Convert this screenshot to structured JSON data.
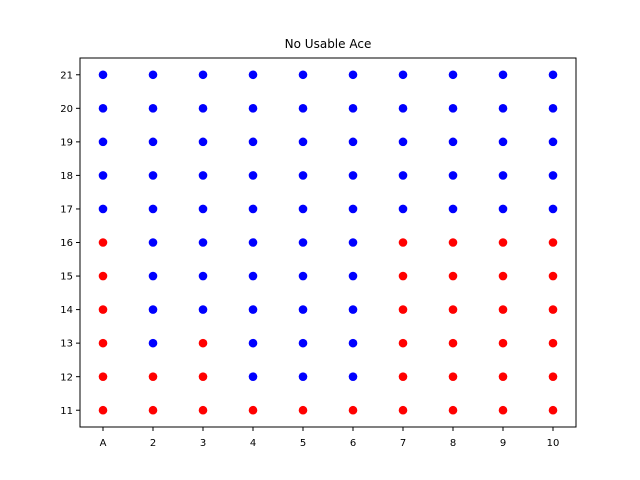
{
  "chart_data": {
    "type": "scatter",
    "title": "No Usable Ace",
    "xlabel": "",
    "ylabel": "",
    "x_categories": [
      "A",
      "2",
      "3",
      "4",
      "5",
      "6",
      "7",
      "8",
      "9",
      "10"
    ],
    "y_ticks": [
      11,
      12,
      13,
      14,
      15,
      16,
      17,
      18,
      19,
      20,
      21
    ],
    "ylim": [
      10.5,
      21.5
    ],
    "grid": false,
    "colors": {
      "blue": "#0000ff",
      "red": "#ff0000"
    },
    "points": [
      {
        "y": 21,
        "colors": [
          "blue",
          "blue",
          "blue",
          "blue",
          "blue",
          "blue",
          "blue",
          "blue",
          "blue",
          "blue"
        ]
      },
      {
        "y": 20,
        "colors": [
          "blue",
          "blue",
          "blue",
          "blue",
          "blue",
          "blue",
          "blue",
          "blue",
          "blue",
          "blue"
        ]
      },
      {
        "y": 19,
        "colors": [
          "blue",
          "blue",
          "blue",
          "blue",
          "blue",
          "blue",
          "blue",
          "blue",
          "blue",
          "blue"
        ]
      },
      {
        "y": 18,
        "colors": [
          "blue",
          "blue",
          "blue",
          "blue",
          "blue",
          "blue",
          "blue",
          "blue",
          "blue",
          "blue"
        ]
      },
      {
        "y": 17,
        "colors": [
          "blue",
          "blue",
          "blue",
          "blue",
          "blue",
          "blue",
          "blue",
          "blue",
          "blue",
          "blue"
        ]
      },
      {
        "y": 16,
        "colors": [
          "red",
          "blue",
          "blue",
          "blue",
          "blue",
          "blue",
          "red",
          "red",
          "red",
          "red"
        ]
      },
      {
        "y": 15,
        "colors": [
          "red",
          "blue",
          "blue",
          "blue",
          "blue",
          "blue",
          "red",
          "red",
          "red",
          "red"
        ]
      },
      {
        "y": 14,
        "colors": [
          "red",
          "blue",
          "blue",
          "blue",
          "blue",
          "blue",
          "red",
          "red",
          "red",
          "red"
        ]
      },
      {
        "y": 13,
        "colors": [
          "red",
          "blue",
          "red",
          "blue",
          "blue",
          "blue",
          "red",
          "red",
          "red",
          "red"
        ]
      },
      {
        "y": 12,
        "colors": [
          "red",
          "red",
          "red",
          "blue",
          "blue",
          "blue",
          "red",
          "red",
          "red",
          "red"
        ]
      },
      {
        "y": 11,
        "colors": [
          "red",
          "red",
          "red",
          "red",
          "red",
          "red",
          "red",
          "red",
          "red",
          "red"
        ]
      }
    ]
  }
}
